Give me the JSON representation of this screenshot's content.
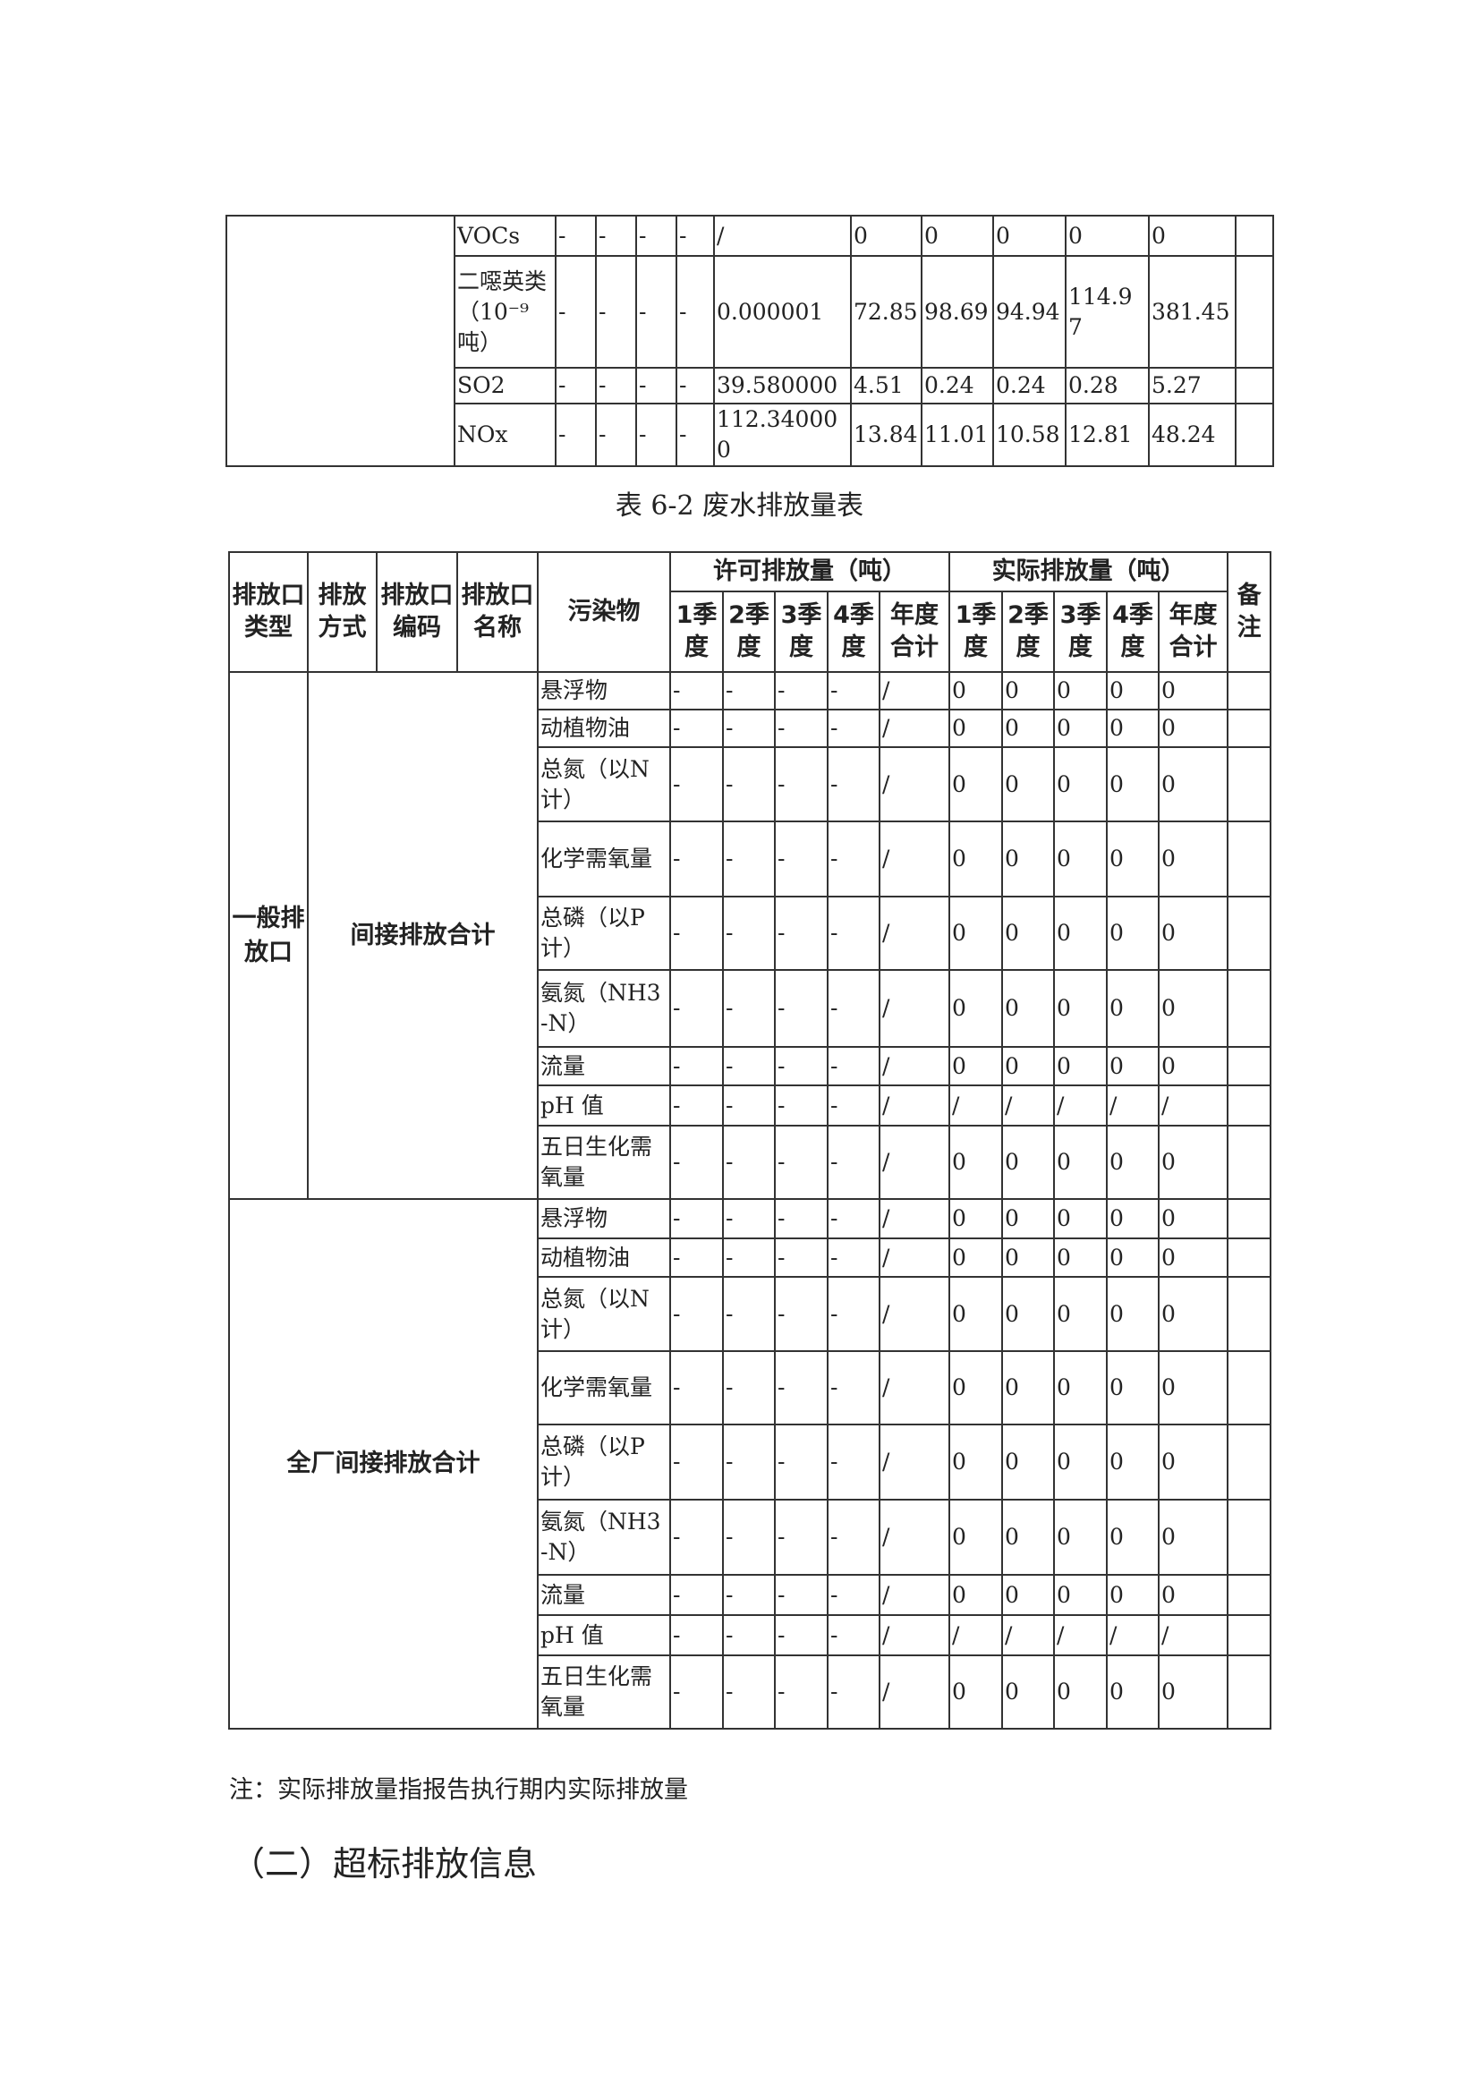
{
  "air_table_continued": {
    "rows": [
      {
        "pollutant": "VOCs",
        "permit": [
          "-",
          "-",
          "-",
          "-",
          "/"
        ],
        "actual": [
          "0",
          "0",
          "0",
          "0",
          "0"
        ],
        "remark": ""
      },
      {
        "pollutant": "二噁英类（10⁻⁹吨）",
        "permit": [
          "-",
          "-",
          "-",
          "-",
          "0.000001"
        ],
        "actual": [
          "72.85",
          "98.69",
          "94.94",
          "114.97",
          "381.45"
        ],
        "remark": ""
      },
      {
        "pollutant": "SO2",
        "permit": [
          "-",
          "-",
          "-",
          "-",
          "39.580000"
        ],
        "actual": [
          "4.51",
          "0.24",
          "0.24",
          "0.28",
          "5.27"
        ],
        "remark": ""
      },
      {
        "pollutant": "NOx",
        "permit": [
          "-",
          "-",
          "-",
          "-",
          "112.340000"
        ],
        "actual": [
          "13.84",
          "11.01",
          "10.58",
          "12.81",
          "48.24"
        ],
        "remark": ""
      }
    ]
  },
  "caption": "表 6-2  废水排放量表",
  "water_table": {
    "headers": {
      "outlet_type": "排放口类型",
      "method": "排放方式",
      "outlet_code": "排放口编码",
      "outlet_name": "排放口名称",
      "pollutant": "污染物",
      "permit_group": "许可排放量（吨）",
      "actual_group": "实际排放量（吨）",
      "remark": "备注",
      "sub": [
        "1季度",
        "2季度",
        "3季度",
        "4季度",
        "年度合计",
        "1季度",
        "2季度",
        "3季度",
        "4季度",
        "年度合计"
      ]
    },
    "groups": [
      {
        "outlet_type": "一般排放口",
        "label": "间接排放合计",
        "rows": [
          {
            "pollutant": "悬浮物",
            "values": [
              "-",
              "-",
              "-",
              "-",
              "/",
              "0",
              "0",
              "0",
              "0",
              "0"
            ]
          },
          {
            "pollutant": "动植物油",
            "values": [
              "-",
              "-",
              "-",
              "-",
              "/",
              "0",
              "0",
              "0",
              "0",
              "0"
            ]
          },
          {
            "pollutant": "总氮（以N计）",
            "values": [
              "-",
              "-",
              "-",
              "-",
              "/",
              "0",
              "0",
              "0",
              "0",
              "0"
            ]
          },
          {
            "pollutant": "化学需氧量",
            "values": [
              "-",
              "-",
              "-",
              "-",
              "/",
              "0",
              "0",
              "0",
              "0",
              "0"
            ]
          },
          {
            "pollutant": "总磷（以P计）",
            "values": [
              "-",
              "-",
              "-",
              "-",
              "/",
              "0",
              "0",
              "0",
              "0",
              "0"
            ]
          },
          {
            "pollutant": "氨氮（NH3-N）",
            "values": [
              "-",
              "-",
              "-",
              "-",
              "/",
              "0",
              "0",
              "0",
              "0",
              "0"
            ]
          },
          {
            "pollutant": "流量",
            "values": [
              "-",
              "-",
              "-",
              "-",
              "/",
              "0",
              "0",
              "0",
              "0",
              "0"
            ]
          },
          {
            "pollutant": "pH 值",
            "values": [
              "-",
              "-",
              "-",
              "-",
              "/",
              "/",
              "/",
              "/",
              "/",
              "/"
            ]
          },
          {
            "pollutant": "五日生化需氧量",
            "values": [
              "-",
              "-",
              "-",
              "-",
              "/",
              "0",
              "0",
              "0",
              "0",
              "0"
            ]
          }
        ]
      },
      {
        "outlet_type": "",
        "label": "全厂间接排放合计",
        "rows": [
          {
            "pollutant": "悬浮物",
            "values": [
              "-",
              "-",
              "-",
              "-",
              "/",
              "0",
              "0",
              "0",
              "0",
              "0"
            ]
          },
          {
            "pollutant": "动植物油",
            "values": [
              "-",
              "-",
              "-",
              "-",
              "/",
              "0",
              "0",
              "0",
              "0",
              "0"
            ]
          },
          {
            "pollutant": "总氮（以N计）",
            "values": [
              "-",
              "-",
              "-",
              "-",
              "/",
              "0",
              "0",
              "0",
              "0",
              "0"
            ]
          },
          {
            "pollutant": "化学需氧量",
            "values": [
              "-",
              "-",
              "-",
              "-",
              "/",
              "0",
              "0",
              "0",
              "0",
              "0"
            ]
          },
          {
            "pollutant": "总磷（以P计）",
            "values": [
              "-",
              "-",
              "-",
              "-",
              "/",
              "0",
              "0",
              "0",
              "0",
              "0"
            ]
          },
          {
            "pollutant": "氨氮（NH3-N）",
            "values": [
              "-",
              "-",
              "-",
              "-",
              "/",
              "0",
              "0",
              "0",
              "0",
              "0"
            ]
          },
          {
            "pollutant": "流量",
            "values": [
              "-",
              "-",
              "-",
              "-",
              "/",
              "0",
              "0",
              "0",
              "0",
              "0"
            ]
          },
          {
            "pollutant": "pH 值",
            "values": [
              "-",
              "-",
              "-",
              "-",
              "/",
              "/",
              "/",
              "/",
              "/",
              "/"
            ]
          },
          {
            "pollutant": "五日生化需氧量",
            "values": [
              "-",
              "-",
              "-",
              "-",
              "/",
              "0",
              "0",
              "0",
              "0",
              "0"
            ]
          }
        ]
      }
    ]
  },
  "note": "注：实际排放量指报告执行期内实际排放量",
  "section_heading": "（二）超标排放信息"
}
